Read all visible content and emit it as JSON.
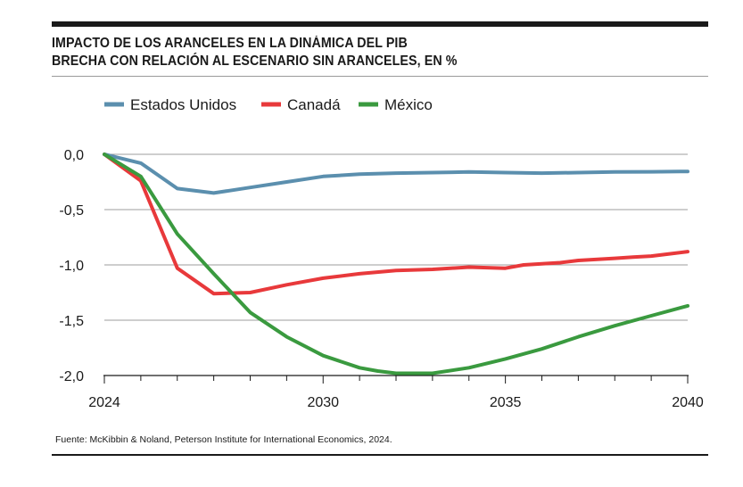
{
  "chart_data": {
    "type": "line",
    "title": "IMPACTO DE LOS ARANCELES EN LA DINÁMICA DEL PIB",
    "subtitle": "BRECHA CON RELACIÓN AL ESCENARIO SIN ARANCELES, EN %",
    "xlabel": "",
    "ylabel": "",
    "xlim": [
      2024,
      2040
    ],
    "ylim": [
      -2.0,
      0.0
    ],
    "x_ticks": [
      2024,
      2030,
      2035,
      2040
    ],
    "x_tick_labels": [
      "2024",
      "2030",
      "2035",
      "2040"
    ],
    "y_ticks": [
      0.0,
      -0.5,
      -1.0,
      -1.5,
      -2.0
    ],
    "y_tick_labels": [
      "0,0",
      "-0,5",
      "-1,0",
      "-1,5",
      "-2,0"
    ],
    "grid": "horizontal",
    "legend_position": "top",
    "series": [
      {
        "name": "Estados Unidos",
        "color": "#5b8fae",
        "x": [
          2024,
          2025,
          2026,
          2027,
          2028,
          2029,
          2030,
          2031,
          2032,
          2033,
          2034,
          2035,
          2036,
          2037,
          2038,
          2039,
          2040
        ],
        "values": [
          0.0,
          -0.08,
          -0.31,
          -0.35,
          -0.3,
          -0.25,
          -0.2,
          -0.18,
          -0.17,
          -0.165,
          -0.16,
          -0.165,
          -0.17,
          -0.165,
          -0.16,
          -0.158,
          -0.155
        ]
      },
      {
        "name": "Canadá",
        "color": "#e8393b",
        "x": [
          2024,
          2025,
          2026,
          2027,
          2028,
          2029,
          2030,
          2031,
          2032,
          2033,
          2034,
          2035,
          2035.5,
          2036,
          2036.5,
          2037,
          2038,
          2038.5,
          2039,
          2039.5,
          2040
        ],
        "values": [
          0.0,
          -0.24,
          -1.03,
          -1.26,
          -1.25,
          -1.18,
          -1.12,
          -1.08,
          -1.05,
          -1.04,
          -1.02,
          -1.03,
          -1.0,
          -0.99,
          -0.98,
          -0.96,
          -0.94,
          -0.93,
          -0.92,
          -0.9,
          -0.88
        ]
      },
      {
        "name": "México",
        "color": "#3a9a3f",
        "x": [
          2024,
          2025,
          2026,
          2027,
          2028,
          2029,
          2030,
          2031,
          2031.5,
          2032,
          2033,
          2034,
          2035,
          2036,
          2037,
          2038,
          2039,
          2040
        ],
        "values": [
          0.0,
          -0.2,
          -0.72,
          -1.08,
          -1.43,
          -1.65,
          -1.82,
          -1.93,
          -1.96,
          -1.98,
          -1.98,
          -1.93,
          -1.85,
          -1.76,
          -1.65,
          -1.55,
          -1.46,
          -1.37
        ]
      }
    ]
  },
  "source": "Fuente: McKibbin & Noland, Peterson Institute for International Economics, 2024."
}
